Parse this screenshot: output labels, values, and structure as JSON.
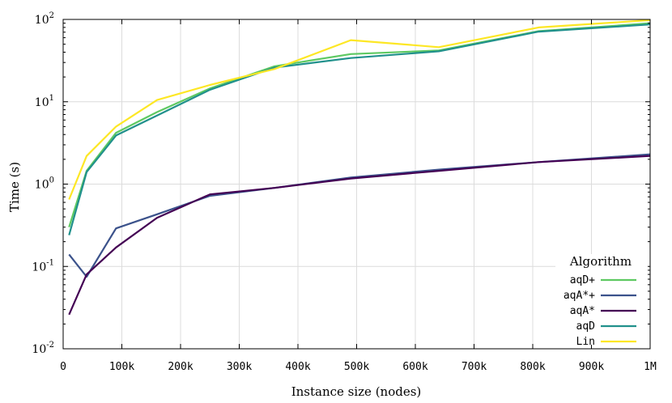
{
  "chart_data": {
    "type": "line",
    "title": "",
    "xlabel": "Instance size (nodes)",
    "ylabel": "Time (s)",
    "xlim": [
      0,
      1000000
    ],
    "ylim": [
      0.01,
      100
    ],
    "yscale": "log",
    "grid": true,
    "x_ticks": [
      {
        "value": 0,
        "label": "0"
      },
      {
        "value": 100000,
        "label": "100k"
      },
      {
        "value": 200000,
        "label": "200k"
      },
      {
        "value": 300000,
        "label": "300k"
      },
      {
        "value": 400000,
        "label": "400k"
      },
      {
        "value": 500000,
        "label": "500k"
      },
      {
        "value": 600000,
        "label": "600k"
      },
      {
        "value": 700000,
        "label": "700k"
      },
      {
        "value": 800000,
        "label": "800k"
      },
      {
        "value": 900000,
        "label": "900k"
      },
      {
        "value": 1000000,
        "label": "1M"
      }
    ],
    "y_ticks": [
      {
        "value": 0.01,
        "base": "10",
        "exp": "-2"
      },
      {
        "value": 0.1,
        "base": "10",
        "exp": "-1"
      },
      {
        "value": 1,
        "base": "10",
        "exp": "0"
      },
      {
        "value": 10,
        "base": "10",
        "exp": "1"
      },
      {
        "value": 100,
        "base": "10",
        "exp": "2"
      }
    ],
    "legend": {
      "title": "Algorithm",
      "placement": "bottom-right"
    },
    "series": [
      {
        "name": "aqD+",
        "color": "#5ec962",
        "x": [
          10000,
          40000,
          90000,
          160000,
          250000,
          360000,
          490000,
          640000,
          810000,
          1000000
        ],
        "y": [
          0.3,
          1.45,
          4.2,
          7.5,
          14.5,
          27,
          38,
          42,
          72,
          90
        ]
      },
      {
        "name": "aqA*+",
        "color": "#3b528b",
        "x": [
          10000,
          40000,
          90000,
          160000,
          250000,
          360000,
          490000,
          640000,
          810000,
          1000000
        ],
        "y": [
          0.14,
          0.075,
          0.29,
          0.43,
          0.72,
          0.9,
          1.2,
          1.5,
          1.85,
          2.3
        ]
      },
      {
        "name": "aqA*",
        "color": "#440154",
        "x": [
          10000,
          40000,
          90000,
          160000,
          250000,
          360000,
          490000,
          640000,
          810000,
          1000000
        ],
        "y": [
          0.026,
          0.08,
          0.17,
          0.39,
          0.75,
          0.9,
          1.17,
          1.45,
          1.85,
          2.2
        ]
      },
      {
        "name": "aqD",
        "color": "#21918c",
        "x": [
          10000,
          40000,
          90000,
          160000,
          250000,
          360000,
          490000,
          640000,
          810000,
          1000000
        ],
        "y": [
          0.24,
          1.4,
          3.9,
          6.8,
          14,
          26,
          34,
          41,
          71,
          87
        ]
      },
      {
        "name": "Lin",
        "color": "#fde725",
        "x": [
          10000,
          40000,
          90000,
          160000,
          250000,
          360000,
          490000,
          640000,
          810000,
          1000000
        ],
        "y": [
          0.65,
          2.2,
          5,
          10.5,
          16,
          25,
          56,
          46,
          80,
          98
        ]
      }
    ]
  }
}
